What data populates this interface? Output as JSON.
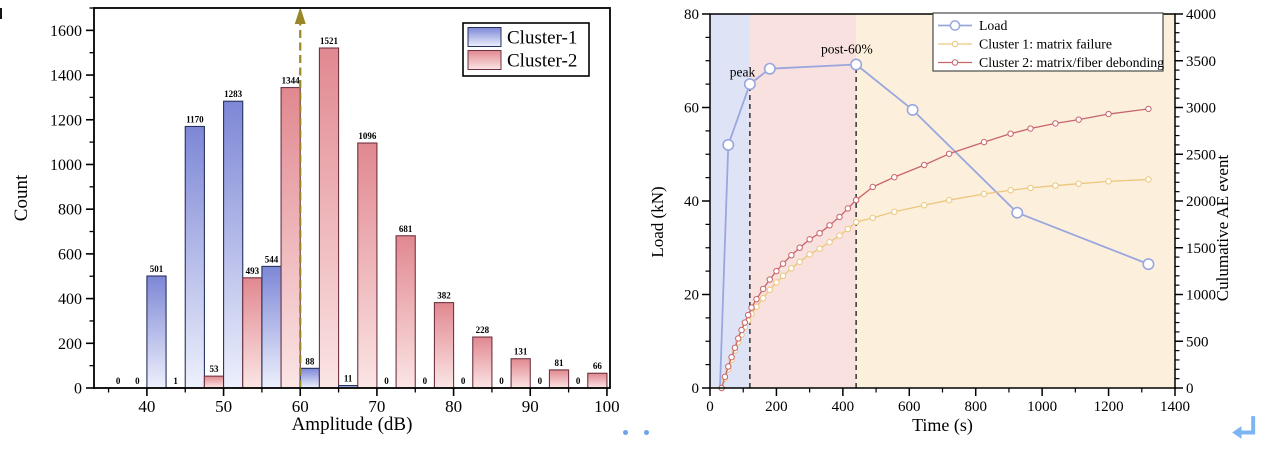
{
  "artifacts": {
    "dots_color": "#6ea3e8",
    "return_icon_color": "#7db4f2",
    "crop_mark_color": "#151515"
  },
  "chart_data": [
    {
      "id": "amplitude-histogram",
      "type": "bar",
      "xlabel": "Amplitude (dB)",
      "ylabel": "Count",
      "xlim": [
        33.1,
        100.4
      ],
      "ylim": [
        0,
        1700
      ],
      "x_ticks_major": [
        40,
        50,
        60,
        70,
        80,
        90,
        100
      ],
      "x_ticks_minor": [
        35,
        45,
        55,
        65,
        75,
        85,
        95
      ],
      "y_ticks_major": [
        0,
        200,
        400,
        600,
        800,
        1000,
        1200,
        1400,
        1600
      ],
      "y_minor_step": 100,
      "bin_width": 5,
      "bins_start": [
        35,
        40,
        45,
        50,
        55,
        60,
        65,
        70,
        75,
        80,
        85,
        90,
        95
      ],
      "series": [
        {
          "name": "Cluster-1",
          "values": [
            0,
            501,
            1170,
            1283,
            544,
            88,
            11,
            0,
            0,
            0,
            0,
            0,
            0
          ],
          "color_top": "#7d87d6",
          "color_bottom": "#edf0fc",
          "border": "#27335f"
        },
        {
          "name": "Cluster-2",
          "values": [
            0,
            1,
            53,
            493,
            1344,
            1521,
            1096,
            681,
            382,
            228,
            131,
            81,
            66
          ],
          "color_top": "#e18890",
          "color_bottom": "#fbe5e5",
          "border": "#6f3340"
        }
      ],
      "vline": {
        "x": 60,
        "color": "#9a8726",
        "style": "dashed",
        "arrow": true
      },
      "legend": {
        "position": "top-right",
        "items": [
          "Cluster-1",
          "Cluster-2"
        ]
      },
      "grid": false
    },
    {
      "id": "load-ae-time",
      "type": "line",
      "xlabel": "Time (s)",
      "ylabel_left": "Load (kN)",
      "ylabel_right": "Culumative AE event",
      "xlim": [
        0,
        1400
      ],
      "ylim_left": [
        0,
        80
      ],
      "ylim_right": [
        0,
        4000
      ],
      "x_ticks_major": [
        0,
        200,
        400,
        600,
        800,
        1000,
        1200,
        1400
      ],
      "x_minor_step": 100,
      "y_left_ticks": [
        0,
        20,
        40,
        60,
        80
      ],
      "y_left_minor_step": 5,
      "y_right_ticks": [
        0,
        500,
        1000,
        1500,
        2000,
        2500,
        3000,
        3500,
        4000
      ],
      "y_right_minor_step": 100,
      "regions": [
        {
          "x0": 0,
          "x1": 120,
          "color": "#dee4f6"
        },
        {
          "x0": 120,
          "x1": 440,
          "color": "#f8e1df"
        },
        {
          "x0": 440,
          "x1": 1400,
          "color": "#fcf0dc"
        }
      ],
      "vlines": [
        {
          "x": 120,
          "top_kN": 65.0,
          "color": "#3f3f3f"
        },
        {
          "x": 440,
          "top_kN": 69.2,
          "color": "#3f3f3f"
        }
      ],
      "annotations": [
        {
          "text": "peak",
          "x": 98,
          "y_kN": 66.6
        },
        {
          "text": "post-60%",
          "x": 412,
          "y_kN": 71.6
        }
      ],
      "series": [
        {
          "name": "Load",
          "axis": "left",
          "color": "#9aa7de",
          "line_width": 1.8,
          "marker_r": 5.2,
          "markers_from_index": 1,
          "x": [
            30,
            55,
            120,
            180,
            440,
            610,
            925,
            1320
          ],
          "y": [
            0,
            52,
            65,
            68.3,
            69.2,
            59.5,
            37.5,
            26.5
          ]
        },
        {
          "name": "Cluster 1: matrix failure",
          "axis": "right",
          "color": "#ecc77d",
          "line_width": 1.3,
          "marker_r": 2.7,
          "markers_from_index": 0,
          "x": [
            35,
            45,
            55,
            65,
            75,
            85,
            95,
            105,
            115,
            125,
            140,
            160,
            180,
            200,
            220,
            245,
            270,
            300,
            330,
            360,
            390,
            415,
            440,
            490,
            555,
            645,
            720,
            825,
            905,
            965,
            1040,
            1110,
            1200,
            1320
          ],
          "y": [
            0,
            100,
            200,
            300,
            400,
            490,
            570,
            650,
            720,
            790,
            870,
            960,
            1050,
            1130,
            1200,
            1280,
            1350,
            1430,
            1490,
            1560,
            1630,
            1700,
            1775,
            1820,
            1885,
            1955,
            2010,
            2075,
            2115,
            2140,
            2165,
            2185,
            2210,
            2230
          ]
        },
        {
          "name": "Cluster 2: matrix/fiber debonding",
          "axis": "right",
          "color": "#c9646a",
          "line_width": 1.3,
          "marker_r": 2.7,
          "markers_from_index": 0,
          "x": [
            35,
            45,
            55,
            65,
            75,
            85,
            95,
            105,
            115,
            125,
            140,
            160,
            180,
            200,
            220,
            245,
            270,
            300,
            330,
            360,
            390,
            415,
            440,
            490,
            555,
            645,
            720,
            825,
            905,
            965,
            1040,
            1110,
            1200,
            1320
          ],
          "y": [
            0,
            120,
            230,
            330,
            430,
            530,
            620,
            700,
            780,
            860,
            950,
            1060,
            1160,
            1250,
            1330,
            1420,
            1500,
            1590,
            1655,
            1740,
            1830,
            1920,
            2010,
            2150,
            2255,
            2385,
            2505,
            2630,
            2720,
            2775,
            2830,
            2870,
            2930,
            2985
          ]
        }
      ],
      "legend": {
        "position": "top-right",
        "items": [
          "Load",
          "Cluster 1: matrix failure",
          "Cluster 2: matrix/fiber debonding"
        ]
      },
      "grid": false
    }
  ]
}
